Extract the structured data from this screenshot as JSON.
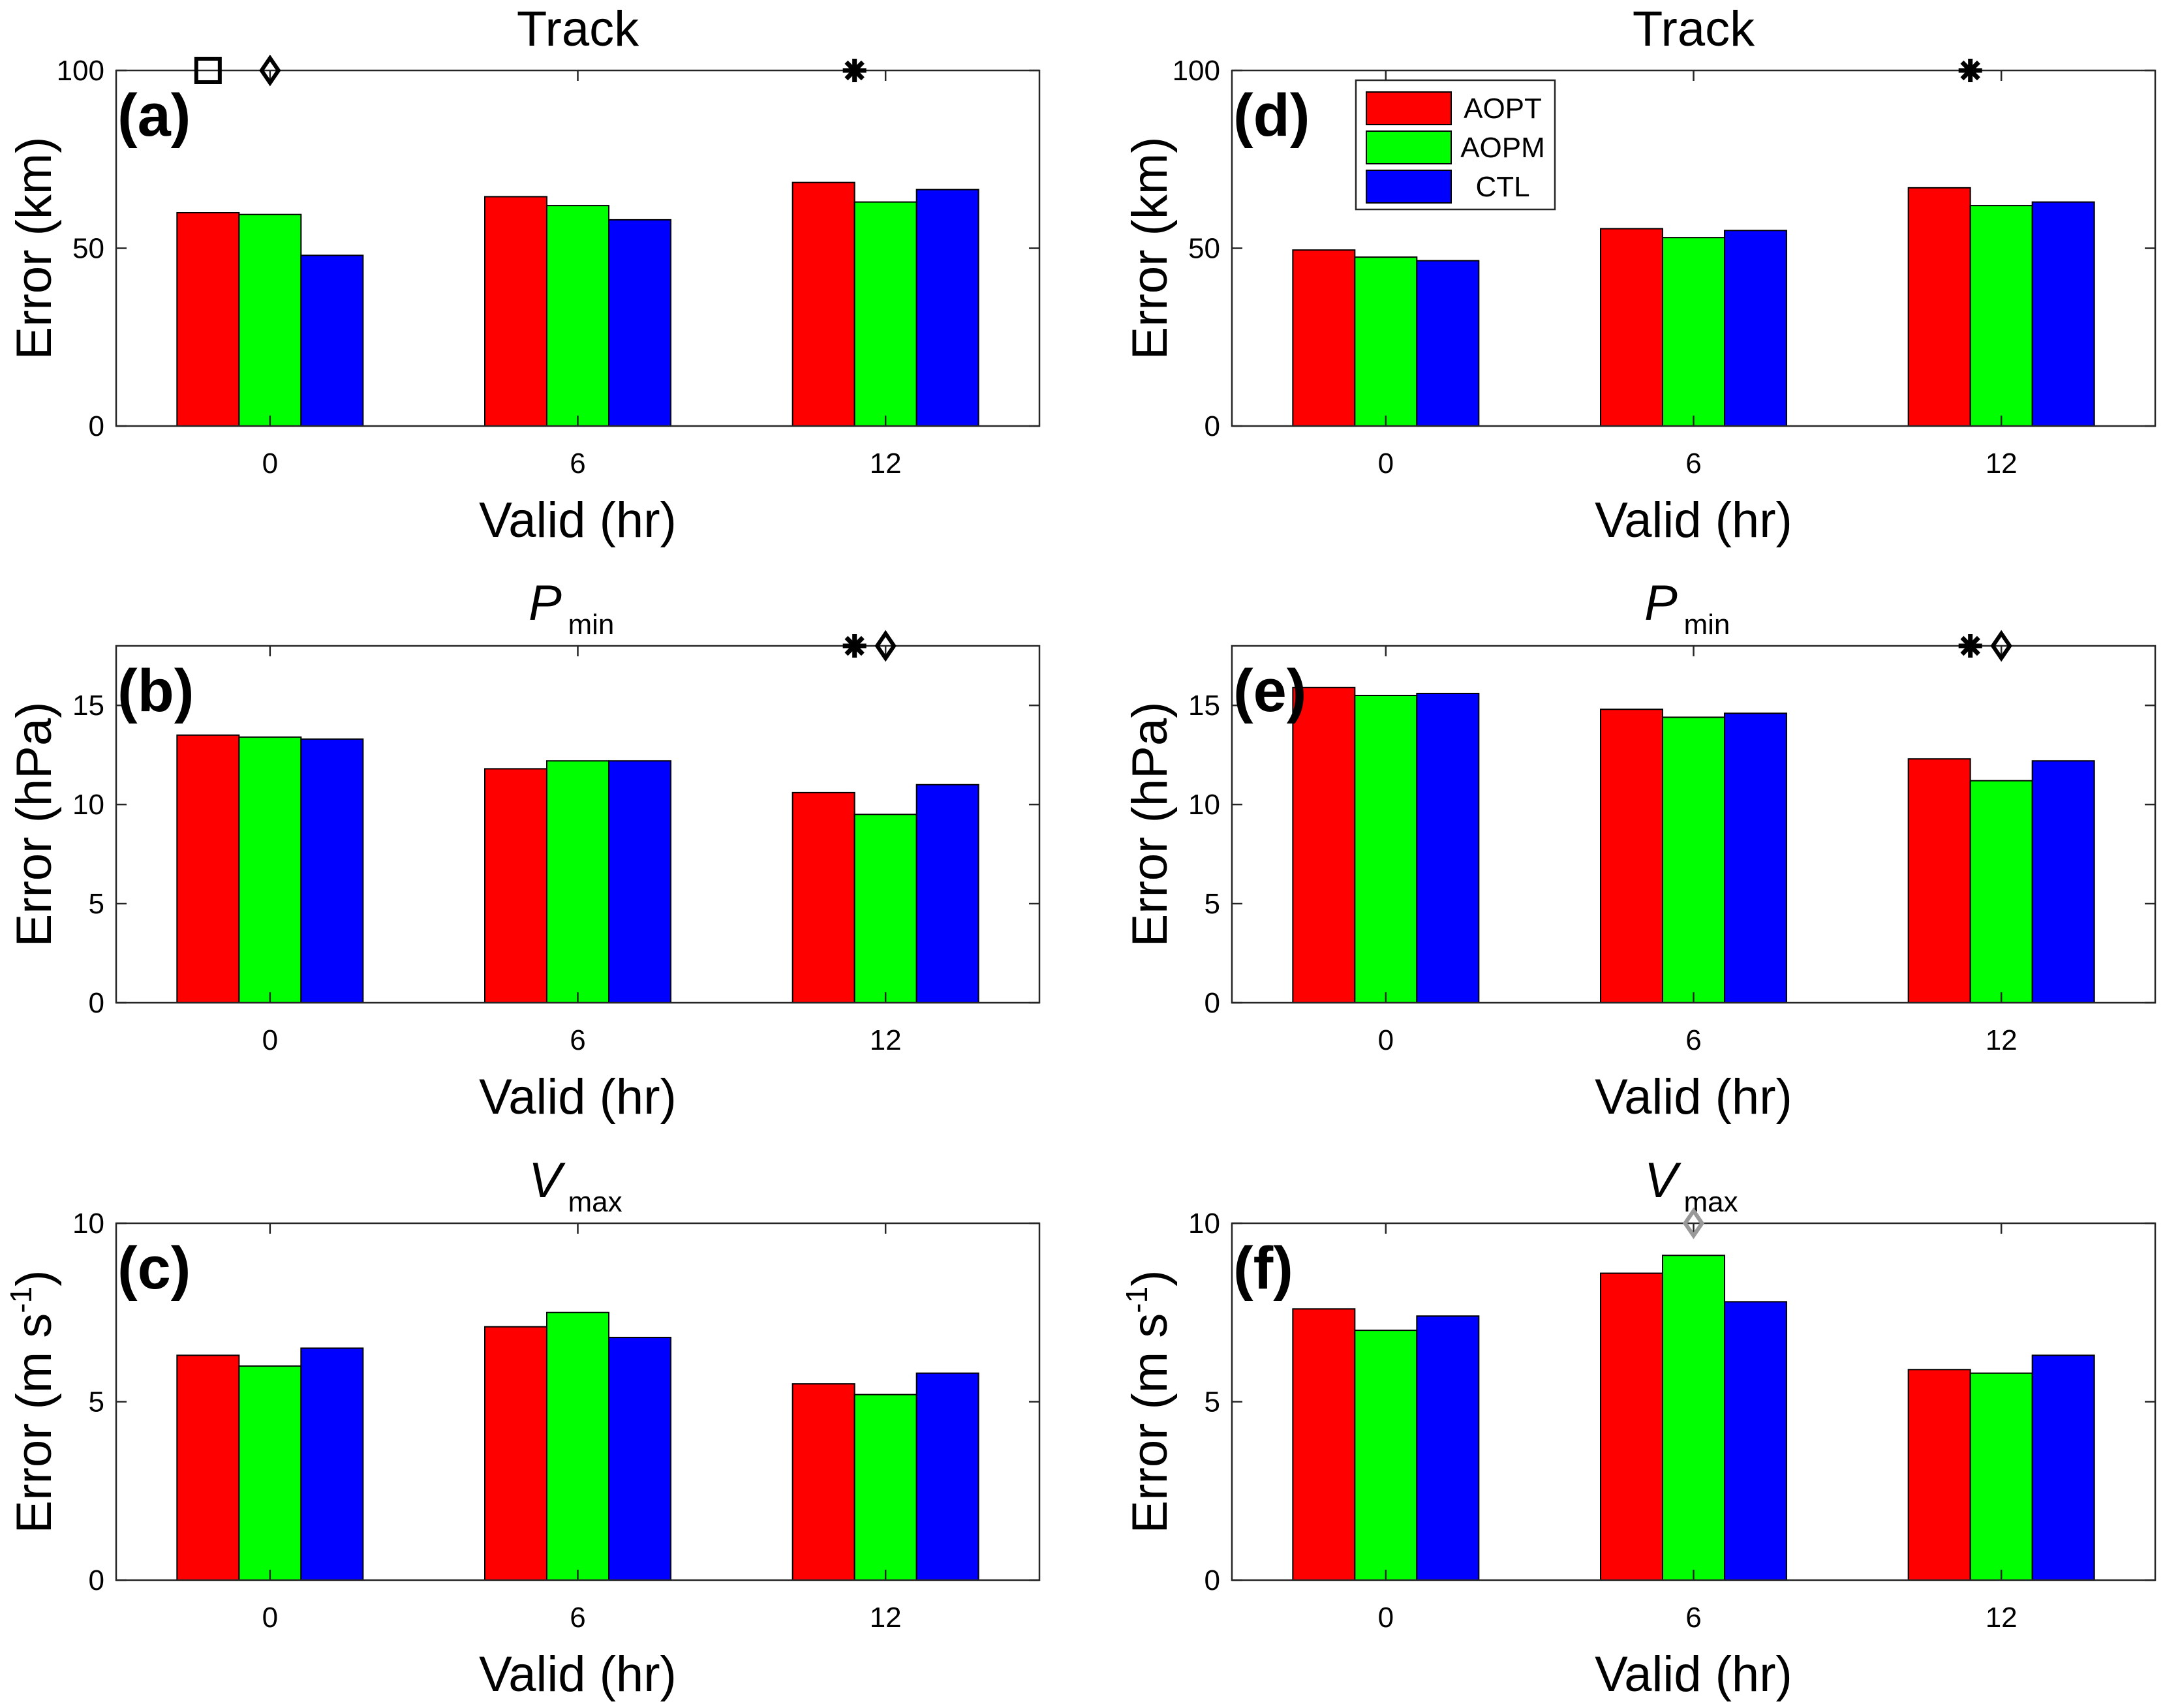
{
  "figure_labels": {
    "track_title": "Track",
    "pmin_title": "P",
    "pmin_sub": "min",
    "vmax_title": "V",
    "vmax_sub": "max",
    "xlabel": "Valid (hr)",
    "ylabel_track": "Error (km)",
    "ylabel_pmin": "Error (hPa)",
    "ylabel_vmax_main": "Error (m s",
    "ylabel_vmax_sup": "-1",
    "ylabel_vmax_end": ")"
  },
  "legend": {
    "placement": "top-left of panel (d)",
    "items": [
      {
        "label": "AOPT",
        "color": "#ff0000"
      },
      {
        "label": "AOPM",
        "color": "#00ff00"
      },
      {
        "label": "CTL",
        "color": "#0000ff"
      }
    ]
  },
  "colors": {
    "AOPT": "#ff0000",
    "AOPM": "#00ff00",
    "CTL": "#0000ff",
    "marker_gray": "#999999"
  },
  "chart_data": [
    {
      "panel": "a",
      "panel_label": "(a)",
      "type": "bar",
      "title": "Track",
      "xlabel": "Valid (hr)",
      "ylabel": "Error (km)",
      "categories": [
        "0",
        "6",
        "12"
      ],
      "ylim": [
        0,
        100
      ],
      "yticks": [
        0,
        50,
        100
      ],
      "series": [
        {
          "name": "AOPT",
          "values": [
            60,
            64.5,
            68.5
          ]
        },
        {
          "name": "AOPM",
          "values": [
            59.5,
            62,
            63
          ]
        },
        {
          "name": "CTL",
          "values": [
            48,
            58,
            66.5
          ]
        }
      ],
      "markers": [
        {
          "symbol": "square",
          "category": "0",
          "offset": -1,
          "color": "#000000"
        },
        {
          "symbol": "diamond",
          "category": "0",
          "offset": 0,
          "color": "#000000"
        },
        {
          "symbol": "asterisk",
          "category": "12",
          "offset": -0.5,
          "color": "#000000"
        }
      ]
    },
    {
      "panel": "b",
      "panel_label": "(b)",
      "type": "bar",
      "title": "Pmin",
      "xlabel": "Valid (hr)",
      "ylabel": "Error (hPa)",
      "categories": [
        "0",
        "6",
        "12"
      ],
      "ylim": [
        0,
        18
      ],
      "yticks": [
        0,
        5,
        10,
        15
      ],
      "series": [
        {
          "name": "AOPT",
          "values": [
            13.5,
            11.8,
            10.6
          ]
        },
        {
          "name": "AOPM",
          "values": [
            13.4,
            12.2,
            9.5
          ]
        },
        {
          "name": "CTL",
          "values": [
            13.3,
            12.2,
            11.0
          ]
        }
      ],
      "markers": [
        {
          "symbol": "asterisk",
          "category": "12",
          "offset": -0.5,
          "color": "#000000"
        },
        {
          "symbol": "diamond",
          "category": "12",
          "offset": 0,
          "color": "#000000"
        }
      ]
    },
    {
      "panel": "c",
      "panel_label": "(c)",
      "type": "bar",
      "title": "Vmax",
      "xlabel": "Valid (hr)",
      "ylabel": "Error (m s-1)",
      "categories": [
        "0",
        "6",
        "12"
      ],
      "ylim": [
        0,
        10
      ],
      "yticks": [
        0,
        5,
        10
      ],
      "series": [
        {
          "name": "AOPT",
          "values": [
            6.3,
            7.1,
            5.5
          ]
        },
        {
          "name": "AOPM",
          "values": [
            6.0,
            7.5,
            5.2
          ]
        },
        {
          "name": "CTL",
          "values": [
            6.5,
            6.8,
            5.8
          ]
        }
      ],
      "markers": []
    },
    {
      "panel": "d",
      "panel_label": "(d)",
      "type": "bar",
      "title": "Track",
      "xlabel": "Valid (hr)",
      "ylabel": "Error (km)",
      "categories": [
        "0",
        "6",
        "12"
      ],
      "ylim": [
        0,
        100
      ],
      "yticks": [
        0,
        50,
        100
      ],
      "series": [
        {
          "name": "AOPT",
          "values": [
            49.5,
            55.5,
            67
          ]
        },
        {
          "name": "AOPM",
          "values": [
            47.5,
            53,
            62
          ]
        },
        {
          "name": "CTL",
          "values": [
            46.5,
            55,
            63
          ]
        }
      ],
      "markers": [
        {
          "symbol": "asterisk",
          "category": "12",
          "offset": -0.5,
          "color": "#000000"
        }
      ]
    },
    {
      "panel": "e",
      "panel_label": "(e)",
      "type": "bar",
      "title": "Pmin",
      "xlabel": "Valid (hr)",
      "ylabel": "Error (hPa)",
      "categories": [
        "0",
        "6",
        "12"
      ],
      "ylim": [
        0,
        18
      ],
      "yticks": [
        0,
        5,
        10,
        15
      ],
      "series": [
        {
          "name": "AOPT",
          "values": [
            15.9,
            14.8,
            12.3
          ]
        },
        {
          "name": "AOPM",
          "values": [
            15.5,
            14.4,
            11.2
          ]
        },
        {
          "name": "CTL",
          "values": [
            15.6,
            14.6,
            12.2
          ]
        }
      ],
      "markers": [
        {
          "symbol": "asterisk",
          "category": "12",
          "offset": -0.5,
          "color": "#000000"
        },
        {
          "symbol": "diamond",
          "category": "12",
          "offset": 0,
          "color": "#000000"
        }
      ]
    },
    {
      "panel": "f",
      "panel_label": "(f)",
      "type": "bar",
      "title": "Vmax",
      "xlabel": "Valid (hr)",
      "ylabel": "Error (m s-1)",
      "categories": [
        "0",
        "6",
        "12"
      ],
      "ylim": [
        0,
        10
      ],
      "yticks": [
        0,
        5,
        10
      ],
      "series": [
        {
          "name": "AOPT",
          "values": [
            7.6,
            8.6,
            5.9
          ]
        },
        {
          "name": "AOPM",
          "values": [
            7.0,
            9.1,
            5.8
          ]
        },
        {
          "name": "CTL",
          "values": [
            7.4,
            7.8,
            6.3
          ]
        }
      ],
      "markers": [
        {
          "symbol": "diamond",
          "category": "6",
          "offset": 0,
          "color": "#999999"
        }
      ]
    }
  ]
}
